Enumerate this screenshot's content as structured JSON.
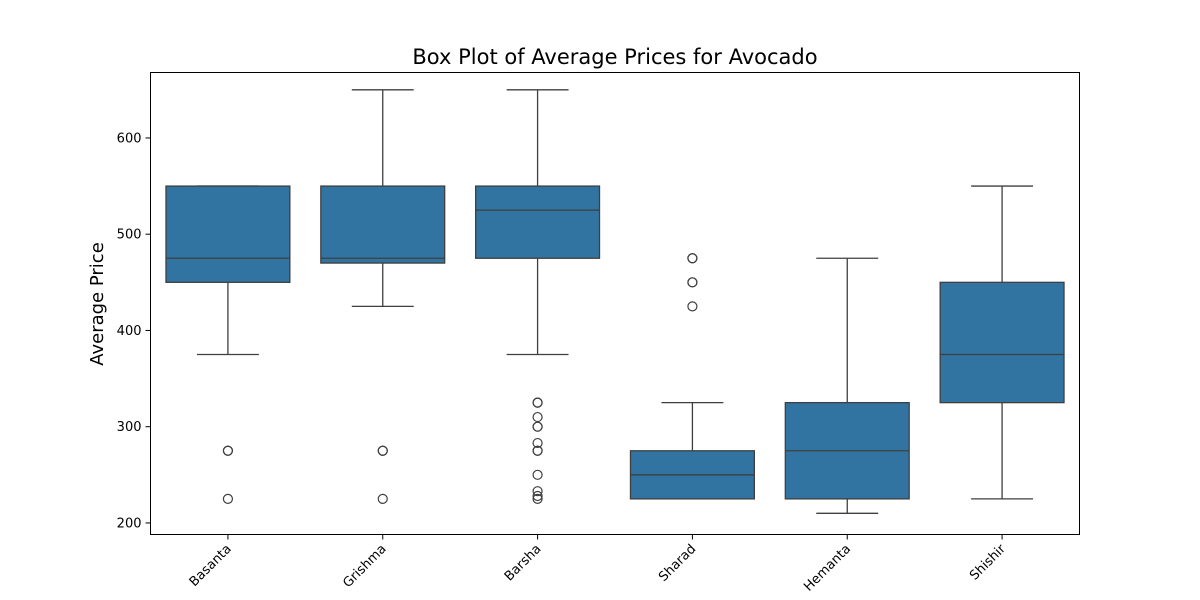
{
  "chart_data": {
    "type": "box",
    "title": "Box Plot of Average Prices for Avocado",
    "xlabel": "",
    "ylabel": "Average Price",
    "ylim": [
      188,
      668
    ],
    "yticks": [
      200,
      300,
      400,
      500,
      600
    ],
    "grid": false,
    "legend": "none",
    "box_color": "#3274a1",
    "line_color": "#3f3f3f",
    "categories": [
      "Basanta",
      "Grishma",
      "Barsha",
      "Sharad",
      "Hemanta",
      "Shishir"
    ],
    "boxes": [
      {
        "q1": 450,
        "median": 475,
        "q3": 550,
        "whisker_low": 375,
        "whisker_high": 550,
        "outliers": [
          275,
          275,
          225
        ]
      },
      {
        "q1": 470,
        "median": 475,
        "q3": 550,
        "whisker_low": 425,
        "whisker_high": 650,
        "outliers": [
          275,
          275,
          225
        ]
      },
      {
        "q1": 475,
        "median": 525,
        "q3": 550,
        "whisker_low": 375,
        "whisker_high": 650,
        "outliers": [
          325,
          325,
          310,
          300,
          300,
          283,
          275,
          275,
          250,
          233,
          228,
          225
        ]
      },
      {
        "q1": 225,
        "median": 250,
        "q3": 275,
        "whisker_low": 225,
        "whisker_high": 325,
        "outliers": [
          475,
          475,
          450,
          450,
          425
        ]
      },
      {
        "q1": 225,
        "median": 275,
        "q3": 325,
        "whisker_low": 210,
        "whisker_high": 475,
        "outliers": []
      },
      {
        "q1": 325,
        "median": 375,
        "q3": 450,
        "whisker_low": 225,
        "whisker_high": 550,
        "outliers": []
      }
    ]
  }
}
